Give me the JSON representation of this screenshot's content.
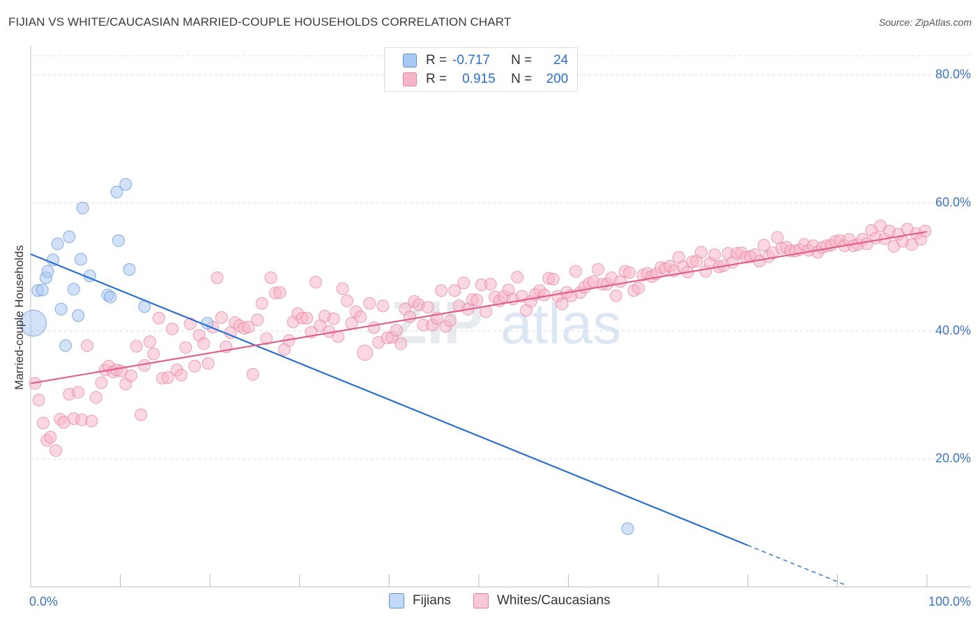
{
  "header": {
    "title": "FIJIAN VS WHITE/CAUCASIAN MARRIED-COUPLE HOUSEHOLDS CORRELATION CHART",
    "source": "Source: ZipAtlas.com"
  },
  "legend": {
    "rows": [
      {
        "r_label": "R =",
        "r_value": "-0.717",
        "n_label": "N =",
        "n_value": "24",
        "color": "#a9c8f3"
      },
      {
        "r_label": "R =",
        "r_value": "0.915",
        "n_label": "N =",
        "n_value": "200",
        "color": "#f7b6c8"
      }
    ]
  },
  "watermark": {
    "zip": "ZIP",
    "atlas": "atlas"
  },
  "chart_data": {
    "type": "scatter",
    "title": "FIJIAN VS WHITE/CAUCASIAN MARRIED-COUPLE HOUSEHOLDS CORRELATION CHART",
    "xlabel": "",
    "ylabel": "Married-couple Households",
    "xlim": [
      0,
      100
    ],
    "ylim": [
      0,
      83
    ],
    "x_tick_labels": [
      "0.0%",
      "100.0%"
    ],
    "y_ticks": [
      20,
      40,
      60,
      80
    ],
    "y_tick_labels": [
      "20.0%",
      "40.0%",
      "60.0%",
      "80.0%"
    ],
    "grid": true,
    "series": [
      {
        "name": "Fijians",
        "color": "#a9c8f3",
        "stroke": "#5b8fd6",
        "line_color": "#2a6fd0",
        "r": -0.717,
        "n": 24,
        "trend": {
          "x0": 0,
          "y0": 52.0,
          "x1": 80,
          "y1": 6.5,
          "dash_to_x": 91
        },
        "points": [
          [
            0.3,
            41.2,
            2.2
          ],
          [
            0.8,
            46.3,
            1
          ],
          [
            1.3,
            46.4,
            1
          ],
          [
            1.7,
            48.3,
            1
          ],
          [
            1.9,
            49.3,
            1
          ],
          [
            2.5,
            51.1,
            1
          ],
          [
            3.0,
            53.6,
            1
          ],
          [
            3.4,
            43.4,
            1
          ],
          [
            3.9,
            37.7,
            1
          ],
          [
            4.3,
            54.7,
            1
          ],
          [
            4.8,
            46.5,
            1
          ],
          [
            5.3,
            42.4,
            1
          ],
          [
            5.6,
            51.2,
            1
          ],
          [
            5.8,
            59.2,
            1
          ],
          [
            6.6,
            48.6,
            1
          ],
          [
            8.6,
            45.6,
            1
          ],
          [
            8.9,
            45.3,
            1
          ],
          [
            9.6,
            61.7,
            1
          ],
          [
            9.8,
            54.1,
            1
          ],
          [
            10.6,
            62.9,
            1
          ],
          [
            11.0,
            49.6,
            1
          ],
          [
            12.7,
            43.8,
            1
          ],
          [
            19.7,
            41.2,
            1
          ],
          [
            66.6,
            9.1,
            1
          ]
        ]
      },
      {
        "name": "Whites/Caucasians",
        "color": "#f7b6c8",
        "stroke": "#e67c9e",
        "line_color": "#e0608a",
        "r": 0.915,
        "n": 200,
        "trend": {
          "x0": 0,
          "y0": 31.8,
          "x1": 100,
          "y1": 55.5
        },
        "points": [
          [
            0.5,
            31.8,
            1
          ],
          [
            0.9,
            29.2,
            1
          ],
          [
            1.4,
            25.6,
            1
          ],
          [
            1.8,
            22.9,
            1
          ],
          [
            2.2,
            23.4,
            1
          ],
          [
            2.8,
            21.3,
            1
          ],
          [
            3.3,
            26.2,
            1
          ],
          [
            3.7,
            25.7,
            1
          ],
          [
            4.3,
            30.1,
            1
          ],
          [
            4.8,
            26.3,
            1
          ],
          [
            5.3,
            30.4,
            1
          ],
          [
            5.7,
            26.1,
            1
          ],
          [
            6.3,
            37.7,
            1
          ],
          [
            6.8,
            25.9,
            1
          ],
          [
            7.3,
            29.6,
            1
          ],
          [
            7.9,
            31.9,
            1
          ],
          [
            8.3,
            33.9,
            1
          ],
          [
            8.7,
            34.5,
            1
          ],
          [
            9.2,
            33.6,
            1
          ],
          [
            9.6,
            33.9,
            1
          ],
          [
            10.1,
            33.7,
            1
          ],
          [
            10.6,
            31.7,
            1
          ],
          [
            11.2,
            33.0,
            1
          ],
          [
            11.8,
            37.6,
            1
          ],
          [
            12.3,
            26.9,
            1
          ],
          [
            12.7,
            34.6,
            1
          ],
          [
            13.3,
            38.3,
            1
          ],
          [
            13.7,
            36.4,
            1
          ],
          [
            14.3,
            42.0,
            1
          ],
          [
            14.7,
            32.6,
            1
          ],
          [
            15.3,
            32.7,
            1
          ],
          [
            15.8,
            40.3,
            1
          ],
          [
            16.3,
            33.9,
            1
          ],
          [
            16.8,
            33.1,
            1
          ],
          [
            17.3,
            37.4,
            1
          ],
          [
            17.8,
            41.1,
            1
          ],
          [
            18.3,
            34.5,
            1
          ],
          [
            18.8,
            39.3,
            1
          ],
          [
            19.3,
            38.0,
            1
          ],
          [
            19.8,
            34.9,
            1
          ],
          [
            20.3,
            40.6,
            1
          ],
          [
            20.8,
            48.3,
            1
          ],
          [
            21.3,
            42.1,
            1
          ],
          [
            21.8,
            37.5,
            1
          ],
          [
            22.3,
            39.7,
            1
          ],
          [
            22.8,
            41.3,
            1
          ],
          [
            23.3,
            40.8,
            1
          ],
          [
            23.8,
            40.4,
            1
          ],
          [
            24.3,
            40.6,
            1
          ],
          [
            24.8,
            33.2,
            1
          ],
          [
            25.3,
            41.7,
            1
          ],
          [
            25.8,
            44.3,
            1
          ],
          [
            26.3,
            38.8,
            1
          ],
          [
            26.8,
            48.3,
            1
          ],
          [
            27.3,
            45.9,
            1
          ],
          [
            27.8,
            46.0,
            1
          ],
          [
            28.3,
            37.1,
            1
          ],
          [
            28.8,
            38.5,
            1
          ],
          [
            29.3,
            41.4,
            1
          ],
          [
            29.8,
            42.7,
            1
          ],
          [
            30.3,
            42.0,
            1
          ],
          [
            30.8,
            42.0,
            1
          ],
          [
            31.3,
            39.8,
            1
          ],
          [
            31.8,
            47.6,
            1
          ],
          [
            32.3,
            40.8,
            1
          ],
          [
            32.8,
            42.3,
            1
          ],
          [
            33.3,
            39.9,
            1
          ],
          [
            33.8,
            41.9,
            1
          ],
          [
            34.3,
            39.1,
            1
          ],
          [
            34.8,
            46.6,
            1
          ],
          [
            35.3,
            44.7,
            1
          ],
          [
            35.8,
            41.2,
            1
          ],
          [
            36.3,
            43.0,
            1
          ],
          [
            36.8,
            42.2,
            1
          ],
          [
            37.3,
            36.6,
            1.3
          ],
          [
            37.8,
            44.3,
            1
          ],
          [
            38.3,
            40.5,
            1
          ],
          [
            38.8,
            38.2,
            1
          ],
          [
            39.3,
            43.9,
            1
          ],
          [
            39.8,
            38.9,
            1
          ],
          [
            40.3,
            39.0,
            1
          ],
          [
            40.8,
            40.1,
            1
          ],
          [
            41.3,
            38.0,
            1
          ],
          [
            41.8,
            43.4,
            1
          ],
          [
            42.3,
            42.2,
            1
          ],
          [
            42.8,
            44.6,
            1
          ],
          [
            43.3,
            44.1,
            1
          ],
          [
            43.8,
            40.9,
            1
          ],
          [
            44.3,
            43.7,
            1
          ],
          [
            44.8,
            40.9,
            1
          ],
          [
            45.3,
            42.0,
            1
          ],
          [
            45.8,
            46.3,
            1
          ],
          [
            46.3,
            40.7,
            1
          ],
          [
            46.8,
            41.6,
            1
          ],
          [
            47.3,
            46.3,
            1
          ],
          [
            47.8,
            43.9,
            1
          ],
          [
            48.3,
            47.5,
            1
          ],
          [
            48.8,
            43.4,
            1
          ],
          [
            49.3,
            44.9,
            1
          ],
          [
            49.8,
            44.8,
            1
          ],
          [
            50.3,
            47.2,
            1
          ],
          [
            50.8,
            43.0,
            1
          ],
          [
            51.3,
            47.3,
            1
          ],
          [
            51.8,
            45.3,
            1
          ],
          [
            52.3,
            44.7,
            1
          ],
          [
            52.8,
            45.4,
            1
          ],
          [
            53.3,
            46.4,
            1
          ],
          [
            53.8,
            45.0,
            1
          ],
          [
            54.3,
            48.4,
            1
          ],
          [
            54.8,
            45.4,
            1
          ],
          [
            55.3,
            43.2,
            1
          ],
          [
            55.8,
            44.6,
            1
          ],
          [
            56.3,
            45.7,
            1
          ],
          [
            56.8,
            46.3,
            1
          ],
          [
            57.3,
            45.6,
            1
          ],
          [
            57.8,
            48.2,
            1
          ],
          [
            58.3,
            48.1,
            1
          ],
          [
            58.8,
            45.4,
            1
          ],
          [
            59.3,
            44.2,
            1
          ],
          [
            59.8,
            46.0,
            1
          ],
          [
            60.3,
            45.5,
            1
          ],
          [
            60.8,
            49.3,
            1
          ],
          [
            61.3,
            46.0,
            1
          ],
          [
            61.8,
            46.8,
            1
          ],
          [
            62.3,
            47.4,
            1
          ],
          [
            62.8,
            47.7,
            1
          ],
          [
            63.3,
            49.6,
            1
          ],
          [
            63.8,
            47.3,
            1
          ],
          [
            64.3,
            47.3,
            1
          ],
          [
            64.8,
            48.3,
            1
          ],
          [
            65.3,
            45.5,
            1
          ],
          [
            65.8,
            47.7,
            1
          ],
          [
            66.3,
            49.3,
            1
          ],
          [
            66.8,
            49.1,
            1
          ],
          [
            67.3,
            46.3,
            1
          ],
          [
            67.8,
            46.7,
            1
          ],
          [
            68.3,
            48.7,
            1
          ],
          [
            68.8,
            49.0,
            1
          ],
          [
            69.3,
            48.5,
            1
          ],
          [
            69.8,
            48.9,
            1
          ],
          [
            70.3,
            49.9,
            1
          ],
          [
            70.8,
            49.7,
            1
          ],
          [
            71.3,
            50.1,
            1
          ],
          [
            71.8,
            49.4,
            1
          ],
          [
            72.3,
            51.5,
            1
          ],
          [
            72.8,
            50.0,
            1
          ],
          [
            73.3,
            49.2,
            1
          ],
          [
            73.8,
            50.8,
            1
          ],
          [
            74.3,
            50.9,
            1
          ],
          [
            74.8,
            52.3,
            1
          ],
          [
            75.3,
            49.3,
            1
          ],
          [
            75.8,
            50.6,
            1
          ],
          [
            76.3,
            51.9,
            1
          ],
          [
            76.8,
            50.0,
            1
          ],
          [
            77.3,
            50.2,
            1
          ],
          [
            77.8,
            52.1,
            1
          ],
          [
            78.3,
            50.7,
            1
          ],
          [
            78.8,
            52.1,
            1
          ],
          [
            79.3,
            52.2,
            1
          ],
          [
            79.8,
            51.5,
            1
          ],
          [
            80.3,
            51.6,
            1
          ],
          [
            80.8,
            51.9,
            1
          ],
          [
            81.3,
            50.9,
            1
          ],
          [
            81.8,
            53.4,
            1
          ],
          [
            82.3,
            51.6,
            1
          ],
          [
            82.8,
            52.2,
            1
          ],
          [
            83.3,
            54.6,
            1
          ],
          [
            83.8,
            52.9,
            1
          ],
          [
            84.3,
            53.1,
            1
          ],
          [
            84.8,
            52.5,
            1
          ],
          [
            85.3,
            52.5,
            1
          ],
          [
            85.8,
            52.7,
            1
          ],
          [
            86.3,
            53.5,
            1
          ],
          [
            86.8,
            52.6,
            1
          ],
          [
            87.3,
            53.3,
            1
          ],
          [
            87.8,
            52.3,
            1
          ],
          [
            88.3,
            53.0,
            1
          ],
          [
            88.8,
            53.3,
            1
          ],
          [
            89.3,
            53.4,
            1
          ],
          [
            89.8,
            54.0,
            1
          ],
          [
            90.3,
            54.1,
            1
          ],
          [
            90.8,
            53.3,
            1
          ],
          [
            91.3,
            54.3,
            1
          ],
          [
            91.8,
            53.3,
            1
          ],
          [
            92.3,
            53.5,
            1
          ],
          [
            92.8,
            54.3,
            1
          ],
          [
            93.3,
            53.6,
            1
          ],
          [
            93.8,
            55.7,
            1
          ],
          [
            94.3,
            54.5,
            1
          ],
          [
            94.8,
            56.4,
            1
          ],
          [
            95.3,
            54.4,
            1
          ],
          [
            95.8,
            55.6,
            1
          ],
          [
            96.3,
            53.2,
            1
          ],
          [
            96.8,
            55.1,
            1
          ],
          [
            97.3,
            54.0,
            1
          ],
          [
            97.8,
            55.9,
            1
          ],
          [
            98.3,
            53.5,
            1
          ],
          [
            98.8,
            55.2,
            1
          ],
          [
            99.3,
            54.3,
            1
          ],
          [
            99.8,
            55.6,
            1
          ]
        ]
      }
    ]
  }
}
